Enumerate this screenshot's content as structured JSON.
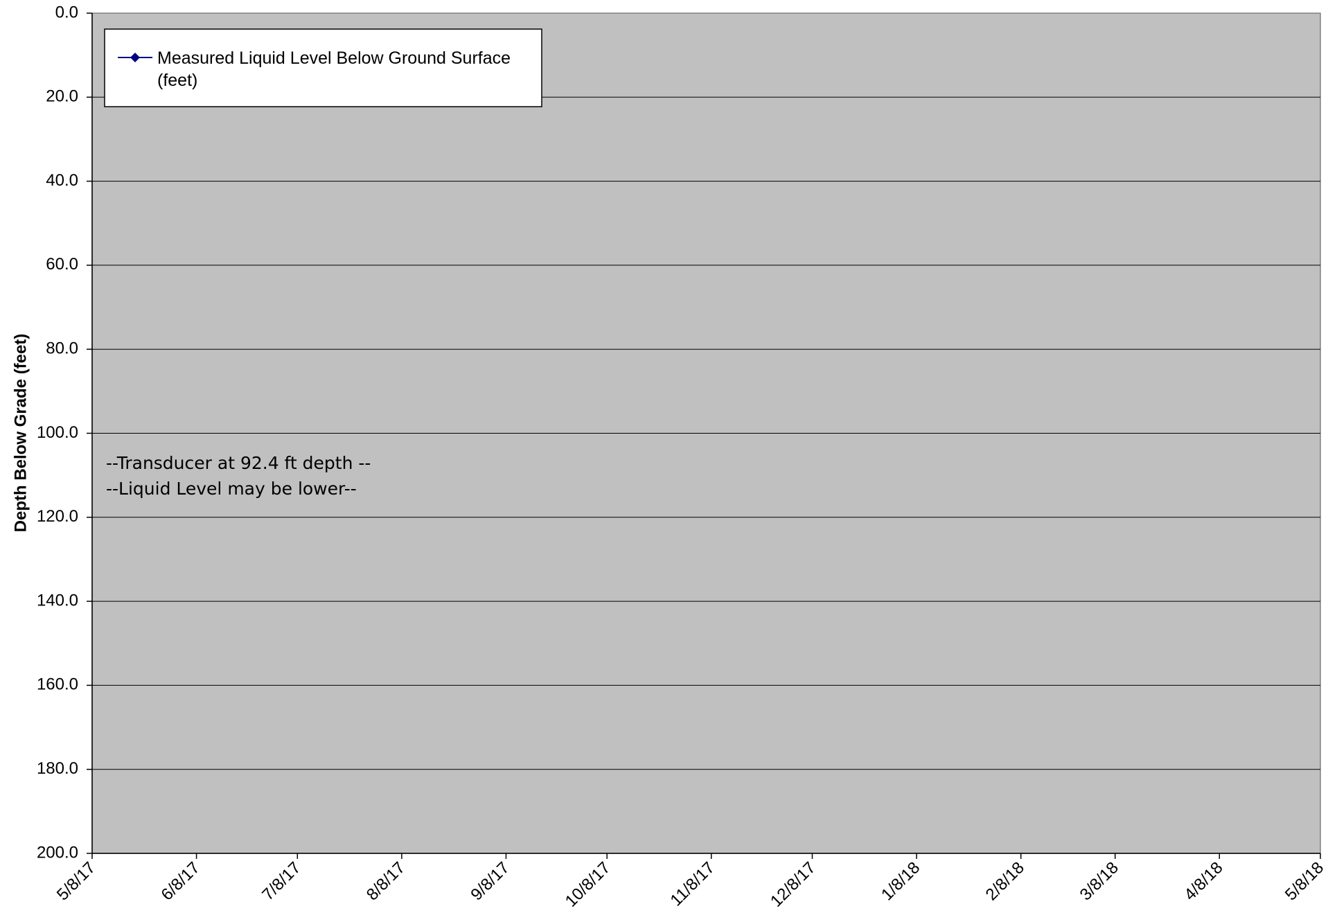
{
  "chart_data": {
    "type": "line",
    "title": "",
    "xlabel": "",
    "ylabel": "Depth Below Grade (feet)",
    "ylim": [
      0,
      200
    ],
    "y_inverted": true,
    "y_ticks": [
      "0.0",
      "20.0",
      "40.0",
      "60.0",
      "80.0",
      "100.0",
      "120.0",
      "140.0",
      "160.0",
      "180.0",
      "200.0"
    ],
    "x_range": [
      "2017-05-08",
      "2018-05-08"
    ],
    "x_ticks": [
      "5/8/17",
      "6/8/17",
      "7/8/17",
      "8/8/17",
      "9/8/17",
      "10/8/17",
      "11/8/17",
      "12/8/17",
      "1/8/18",
      "2/8/18",
      "3/8/18",
      "4/8/18",
      "5/8/18"
    ],
    "x_tick_dates": [
      "2017-05-08",
      "2017-06-08",
      "2017-07-08",
      "2017-08-08",
      "2017-09-08",
      "2017-10-08",
      "2017-11-08",
      "2017-12-08",
      "2018-01-08",
      "2018-02-08",
      "2018-03-08",
      "2018-04-08",
      "2018-05-08"
    ],
    "grid": "horizontal",
    "legend_position": "top-left",
    "series": [
      {
        "name": "Measured Liquid Level Below Ground Surface (feet)",
        "name_lines": [
          "Measured Liquid Level Below Ground Surface",
          "(feet)"
        ],
        "color": "#000080",
        "marker": "diamond",
        "points": []
      }
    ],
    "annotations": [
      "--Transducer at 92.4 ft depth --",
      "--Liquid Level may be lower--"
    ],
    "colors": {
      "plot_background": "#c0c0c0",
      "gridline": "#000000",
      "series": "#000080"
    }
  }
}
